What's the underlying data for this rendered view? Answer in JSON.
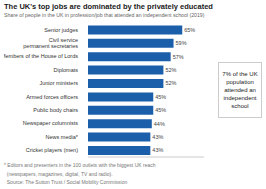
{
  "chart_data": {
    "type": "bar",
    "orientation": "horizontal",
    "title": "The UK's top jobs are dominated by the privately educated",
    "subtitle": "Share of people in the UK in profession/job that attended an independent school (2019)",
    "categories": [
      "Cricket players (men)",
      "News media*",
      "Newspaper columnists",
      "Public body chairs",
      "Armed forces officers",
      "Junior ministers",
      "Diplomats",
      "Members of the House of Lords",
      "Civil service\npermanent secretaries",
      "Senior judges"
    ],
    "values": [
      43,
      43,
      44,
      45,
      45,
      52,
      52,
      57,
      59,
      65
    ],
    "value_labels": [
      "43%",
      "43%",
      "44%",
      "45%",
      "45%",
      "52%",
      "52%",
      "57%",
      "59%",
      "65%"
    ],
    "data_labels": true,
    "color": "#1b5faa",
    "xlim": [
      0,
      80
    ],
    "grid": false,
    "tick_labels": "y",
    "annotation": "7% of the UK\npopulation\nattended an\nindependent\nschool",
    "footnotes": [
      "* Editors and presenters in the 100 outlets with the biggest UK reach",
      "  (newspapers, magazines, digital, TV and radio).",
      "  Source: The Sutton Trust / Social Mobility Commission"
    ]
  }
}
